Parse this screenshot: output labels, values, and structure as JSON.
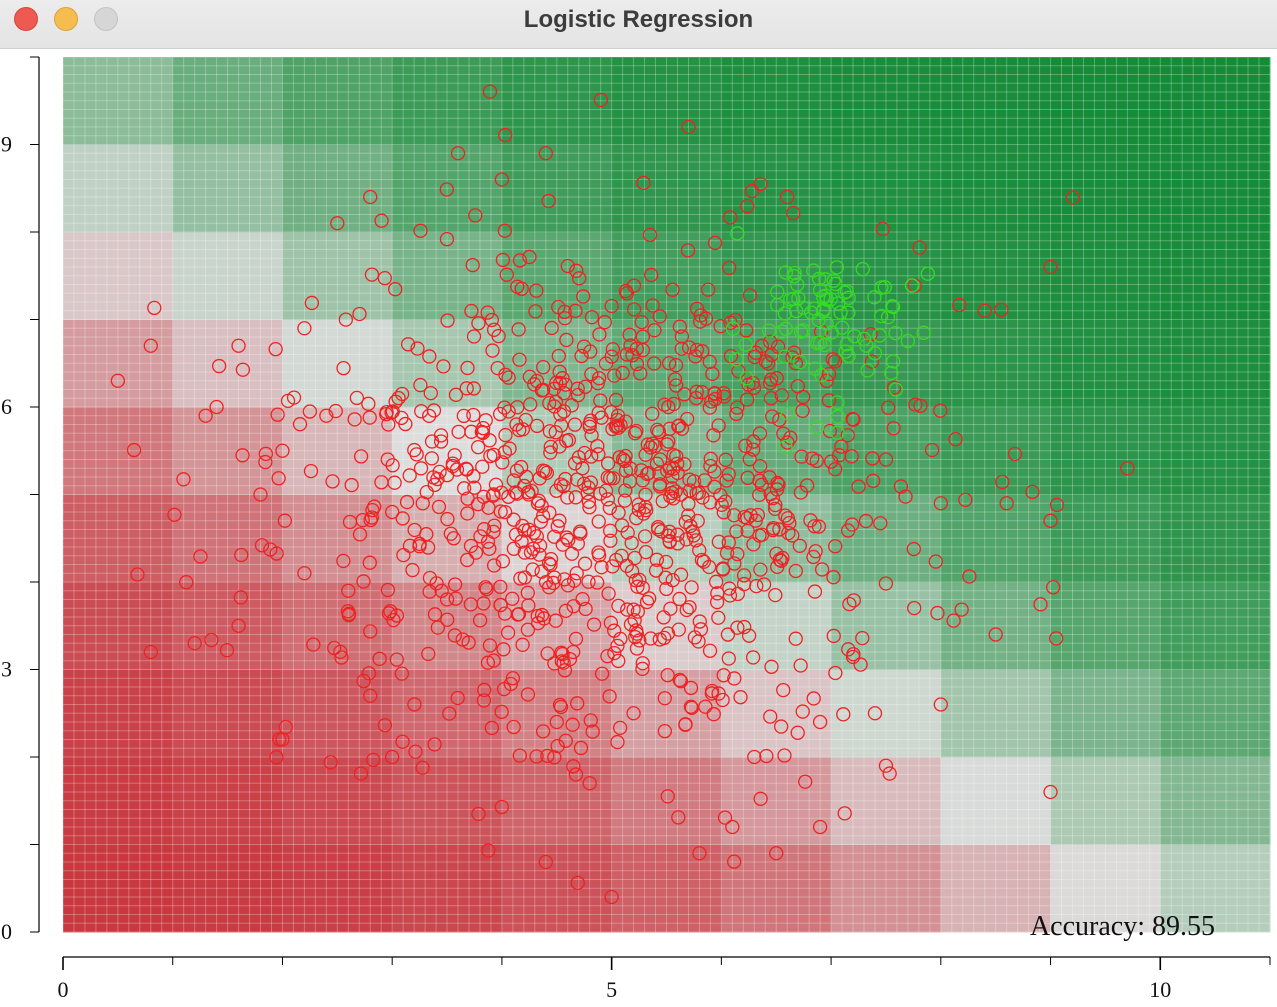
{
  "window": {
    "title": "Logistic Regression"
  },
  "chart_data": {
    "type": "scatter",
    "title": "",
    "xlabel": "",
    "ylabel": "",
    "xlim": [
      0,
      11
    ],
    "ylim": [
      0,
      10
    ],
    "x_ticks": [
      0,
      5,
      10
    ],
    "y_ticks": [
      0,
      3,
      6,
      9
    ],
    "annotation": "Accuracy: 89.55",
    "background": "probability heatmap, red (low, near origin) to green (high, upper right)",
    "colors": {
      "class0": "#ee2222",
      "class1": "#33dd22",
      "heat_low": "#c8323a",
      "heat_mid": "#dddddd",
      "heat_high": "#138a36"
    },
    "series": [
      {
        "color": "#ee2222",
        "note": "red circles ~1000 points, centered near (5,5)"
      },
      {
        "color": "#33dd22",
        "note": "green circles ~80 points, clustered near (7,7)"
      }
    ],
    "sample_points": [
      [
        0.5,
        6.3
      ],
      [
        0.8,
        6.7
      ],
      [
        1.3,
        5.9
      ],
      [
        1.4,
        6.0
      ],
      [
        1.6,
        6.7
      ],
      [
        1.8,
        5.0
      ],
      [
        2.0,
        5.5
      ],
      [
        2.2,
        6.9
      ],
      [
        2.5,
        8.1
      ],
      [
        2.4,
        5.9
      ],
      [
        0.8,
        3.2
      ],
      [
        1.2,
        3.3
      ],
      [
        1.6,
        3.5
      ],
      [
        2.2,
        4.1
      ],
      [
        2.6,
        3.9
      ],
      [
        3.0,
        4.8
      ],
      [
        3.5,
        3.8
      ],
      [
        4.1,
        2.9
      ],
      [
        4.8,
        1.7
      ],
      [
        4.4,
        0.8
      ],
      [
        5.0,
        0.4
      ],
      [
        5.8,
        0.9
      ],
      [
        6.1,
        1.2
      ],
      [
        6.5,
        0.9
      ],
      [
        6.9,
        1.2
      ],
      [
        7.5,
        1.9
      ],
      [
        9.0,
        1.6
      ],
      [
        9.7,
        5.3
      ],
      [
        9.0,
        7.6
      ],
      [
        8.4,
        7.1
      ],
      [
        5.7,
        9.2
      ],
      [
        3.6,
        8.9
      ],
      [
        4.4,
        8.9
      ],
      [
        4.0,
        8.6
      ],
      [
        2.8,
        8.4
      ],
      [
        6.6,
        8.4
      ],
      [
        7.5,
        5.4
      ],
      [
        8.0,
        4.9
      ],
      [
        8.6,
        4.9
      ],
      [
        9.0,
        4.7
      ],
      [
        8.5,
        3.4
      ],
      [
        8.0,
        2.6
      ],
      [
        7.4,
        2.5
      ],
      [
        6.9,
        2.4
      ],
      [
        6.3,
        2.0
      ],
      [
        5.2,
        2.5
      ],
      [
        4.5,
        2.4
      ],
      [
        3.0,
        2.0
      ],
      [
        2.8,
        2.7
      ],
      [
        2.0,
        2.2
      ]
    ]
  }
}
